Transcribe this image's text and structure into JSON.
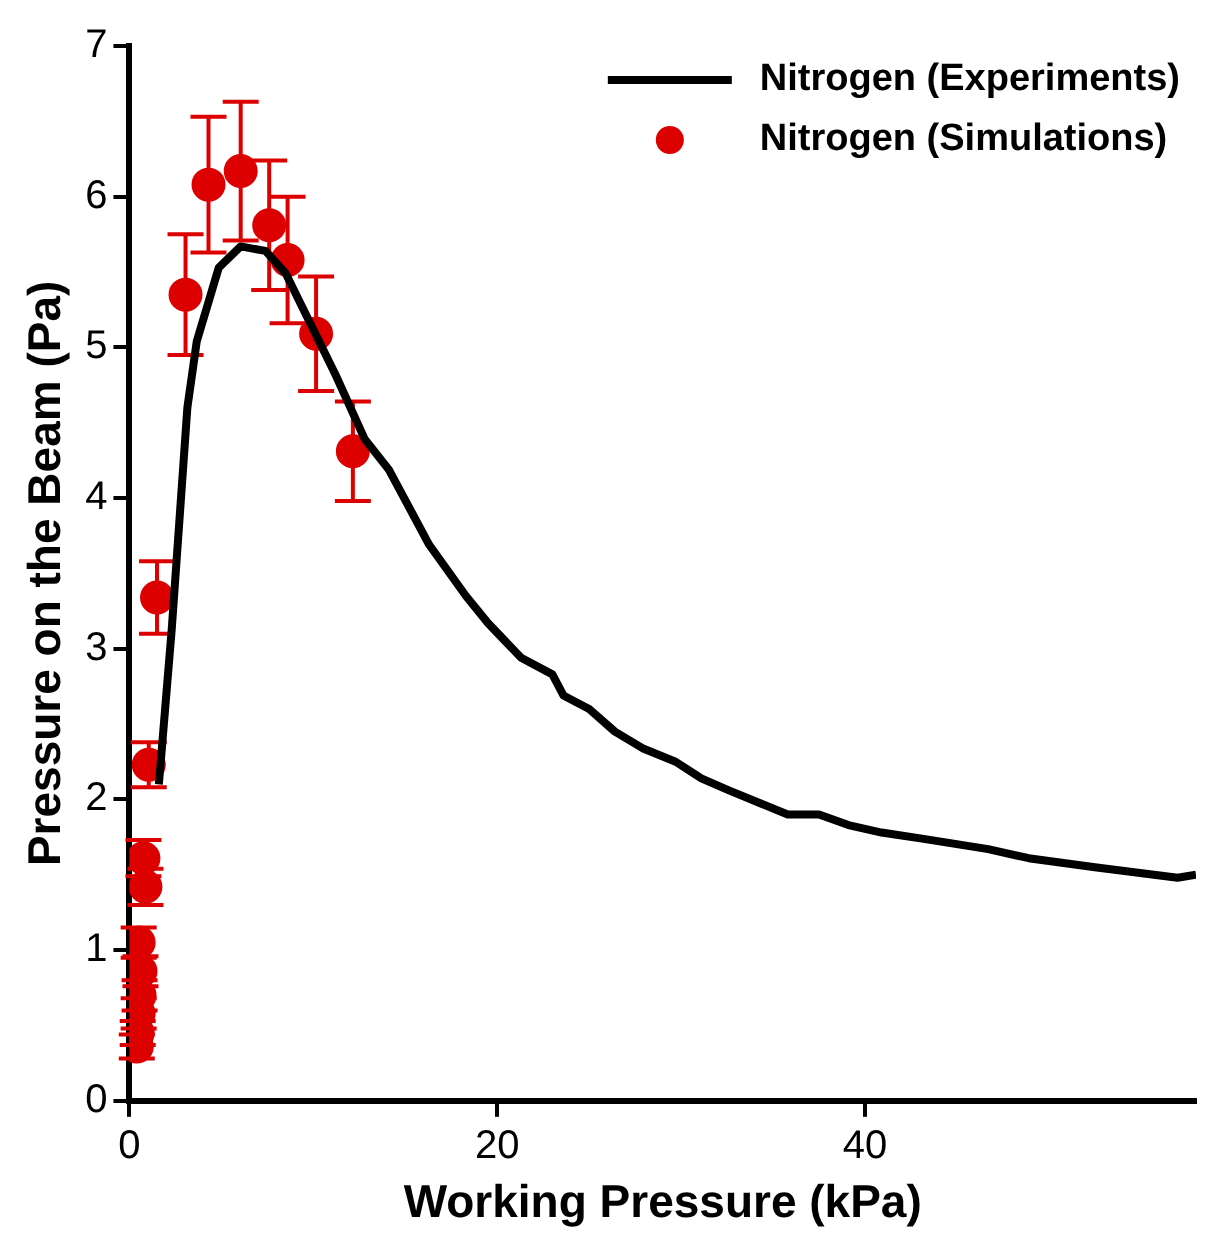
{
  "chart_data": {
    "type": "line",
    "xlabel": "Working Pressure (kPa)",
    "ylabel": "Pressure on the Beam (Pa)",
    "xlim": [
      0,
      58
    ],
    "ylim": [
      0,
      7
    ],
    "xticks": [
      0,
      20,
      40
    ],
    "yticks": [
      0,
      1,
      2,
      3,
      4,
      5,
      6,
      7
    ],
    "grid": false,
    "legend": "top right",
    "series": [
      {
        "name": "Nitrogen (Experiments)",
        "color": "#000000",
        "marker": "none",
        "line_style": "solid",
        "x": [
          1.6,
          2.3,
          3.15,
          3.66,
          4.86,
          6.05,
          7.4,
          8.5,
          11.2,
          12.8,
          14.1,
          16.3,
          18.3,
          19.5,
          21.3,
          23.0,
          23.6,
          25.0,
          26.4,
          27.9,
          29.7,
          31.1,
          32.6,
          34.4,
          35.8,
          37.5,
          39.1,
          40.9,
          43.1,
          46.7,
          48.9,
          52.5,
          57.0,
          58.0
        ],
        "values": [
          2.1,
          3.13,
          4.6,
          5.04,
          5.53,
          5.67,
          5.64,
          5.49,
          4.82,
          4.39,
          4.19,
          3.69,
          3.35,
          3.17,
          2.94,
          2.83,
          2.69,
          2.6,
          2.45,
          2.34,
          2.25,
          2.14,
          2.06,
          1.97,
          1.9,
          1.9,
          1.83,
          1.78,
          1.74,
          1.67,
          1.61,
          1.55,
          1.48,
          1.5
        ]
      },
      {
        "name": "Nitrogen (Simulations)",
        "type": "scatter",
        "color": "#dd0000",
        "marker": "circle",
        "x": [
          0.4,
          0.45,
          0.5,
          0.55,
          0.6,
          0.5,
          0.76,
          0.87,
          1.05,
          1.5,
          3.05,
          4.3,
          6.05,
          7.6,
          8.6,
          10.15,
          12.15
        ],
        "values": [
          0.36,
          0.45,
          0.58,
          0.7,
          0.86,
          1.05,
          1.61,
          1.42,
          2.23,
          3.34,
          5.35,
          6.08,
          6.17,
          5.81,
          5.58,
          5.09,
          4.31
        ],
        "errors": [
          0.08,
          0.08,
          0.1,
          0.1,
          0.1,
          0.1,
          0.12,
          0.12,
          0.15,
          0.24,
          0.4,
          0.45,
          0.46,
          0.43,
          0.42,
          0.38,
          0.33
        ]
      }
    ]
  }
}
